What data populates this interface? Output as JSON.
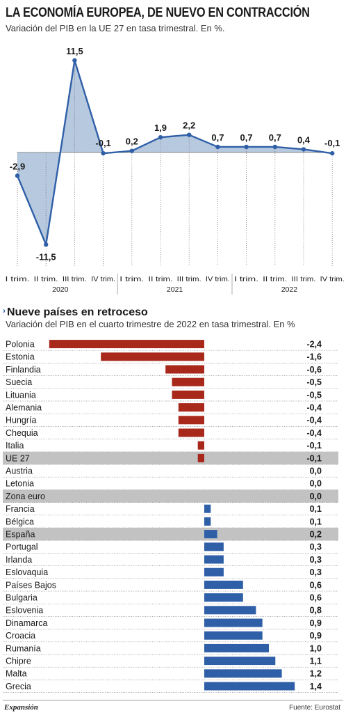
{
  "header": {
    "title": "LA ECONOMÍA EUROPEA, DE NUEVO EN CONTRACCIÓN",
    "subtitle": "Variación del PIB en la UE 27 en tasa trimestral. En %."
  },
  "section2": {
    "title": "Nueve países en retroceso",
    "subtitle": "Variación del PIB en el cuarto trimestre de 2022 en tasa trimestral. En %"
  },
  "footer": {
    "brand": "Expansión",
    "source": "Fuente: Eurostat"
  },
  "colors": {
    "line": "#2f5fa7",
    "area": "#a9bfd9",
    "negative_bar": "#a8291c",
    "positive_bar": "#2f5fa7",
    "highlight_row": "#c2c2c2"
  },
  "chart_data": [
    {
      "type": "line",
      "x": [
        "I trim.",
        "II trim.",
        "III trim.",
        "IV trim.",
        "I trim.",
        "II trim.",
        "III trim.",
        "IV trim.",
        "I trim.",
        "II trim.",
        "III trim.",
        "IV trim."
      ],
      "years": [
        "2020",
        "2021",
        "2022"
      ],
      "values": [
        -2.9,
        -11.5,
        11.5,
        -0.1,
        0.2,
        1.9,
        2.2,
        0.7,
        0.7,
        0.7,
        0.4,
        -0.1
      ],
      "labels": [
        "-2,9",
        "-11,5",
        "11,5",
        "-0,1",
        "0,2",
        "1,9",
        "2,2",
        "0,7",
        "0,7",
        "0,7",
        "0,4",
        "-0,1"
      ],
      "ylim": [
        -13,
        13
      ],
      "fill": "area to zero"
    },
    {
      "type": "bar",
      "orientation": "horizontal",
      "categories": [
        "Polonia",
        "Estonia",
        "Finlandia",
        "Suecia",
        "Lituania",
        "Alemania",
        "Hungría",
        "Chequia",
        "Italia",
        "UE 27",
        "Austria",
        "Letonia",
        "Zona euro",
        "Francia",
        "Bélgica",
        "España",
        "Portugal",
        "Irlanda",
        "Eslovaquia",
        "Países Bajos",
        "Bulgaria",
        "Eslovenia",
        "Dinamarca",
        "Croacia",
        "Rumanía",
        "Chipre",
        "Malta",
        "Grecia"
      ],
      "values": [
        -2.4,
        -1.6,
        -0.6,
        -0.5,
        -0.5,
        -0.4,
        -0.4,
        -0.4,
        -0.1,
        -0.1,
        0.0,
        0.0,
        0.0,
        0.1,
        0.1,
        0.2,
        0.3,
        0.3,
        0.3,
        0.6,
        0.6,
        0.8,
        0.9,
        0.9,
        1.0,
        1.1,
        1.2,
        1.4
      ],
      "labels": [
        "-2,4",
        "-1,6",
        "-0,6",
        "-0,5",
        "-0,5",
        "-0,4",
        "-0,4",
        "-0,4",
        "-0,1",
        "-0,1",
        "0,0",
        "0,0",
        "0,0",
        "0,1",
        "0,1",
        "0,2",
        "0,3",
        "0,3",
        "0,3",
        "0,6",
        "0,6",
        "0,8",
        "0,9",
        "0,9",
        "1,0",
        "1,1",
        "1,2",
        "1,4"
      ],
      "highlighted": [
        "UE 27",
        "Zona euro",
        "España"
      ]
    }
  ]
}
